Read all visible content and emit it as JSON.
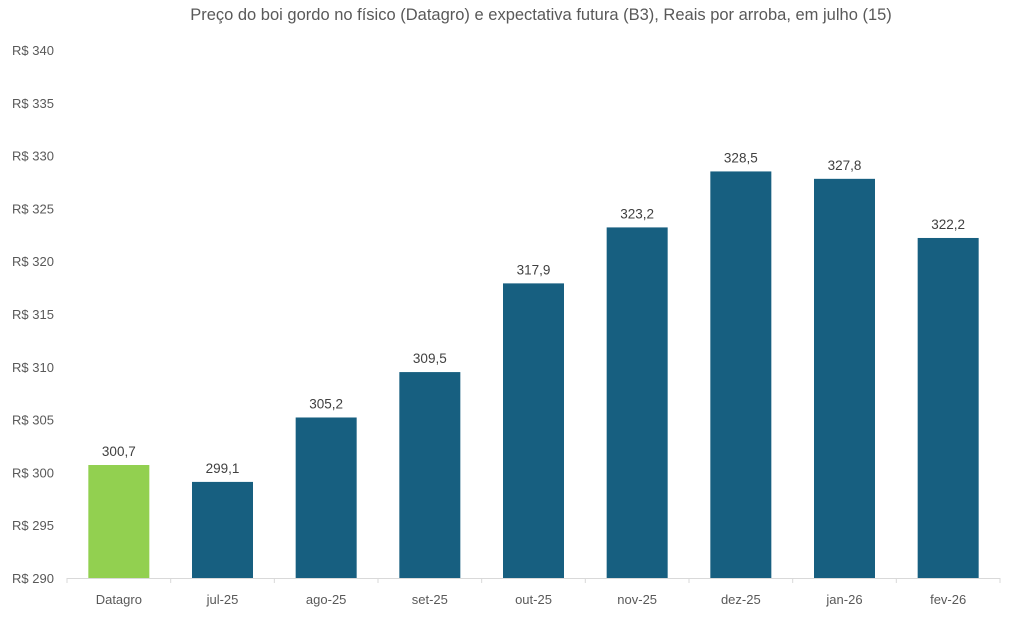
{
  "chart_data": {
    "type": "bar",
    "title": "Preço do boi gordo no físico (Datagro)  e expectativa futura (B3), Reais por arroba, em julho (15)",
    "xlabel": "",
    "ylabel": "",
    "categories": [
      "Datagro",
      "jul-25",
      "ago-25",
      "set-25",
      "out-25",
      "nov-25",
      "dez-25",
      "jan-26",
      "fev-26"
    ],
    "values": [
      300.7,
      299.1,
      305.2,
      309.5,
      317.9,
      323.2,
      328.5,
      327.8,
      322.2
    ],
    "data_labels": [
      "300,7",
      "299,1",
      "305,2",
      "309,5",
      "317,9",
      "323,2",
      "328,5",
      "327,8",
      "322,2"
    ],
    "bar_colors": [
      "#92d050",
      "#175f80",
      "#175f80",
      "#175f80",
      "#175f80",
      "#175f80",
      "#175f80",
      "#175f80",
      "#175f80"
    ],
    "ylim": [
      290,
      340
    ],
    "yticks": [
      290,
      295,
      300,
      305,
      310,
      315,
      320,
      325,
      330,
      335,
      340
    ],
    "ytick_labels": [
      "R$ 290",
      "R$ 295",
      "R$ 300",
      "R$ 305",
      "R$ 310",
      "R$ 315",
      "R$ 320",
      "R$ 325",
      "R$ 330",
      "R$ 335",
      "R$ 340"
    ],
    "grid": false,
    "legend": "none"
  }
}
